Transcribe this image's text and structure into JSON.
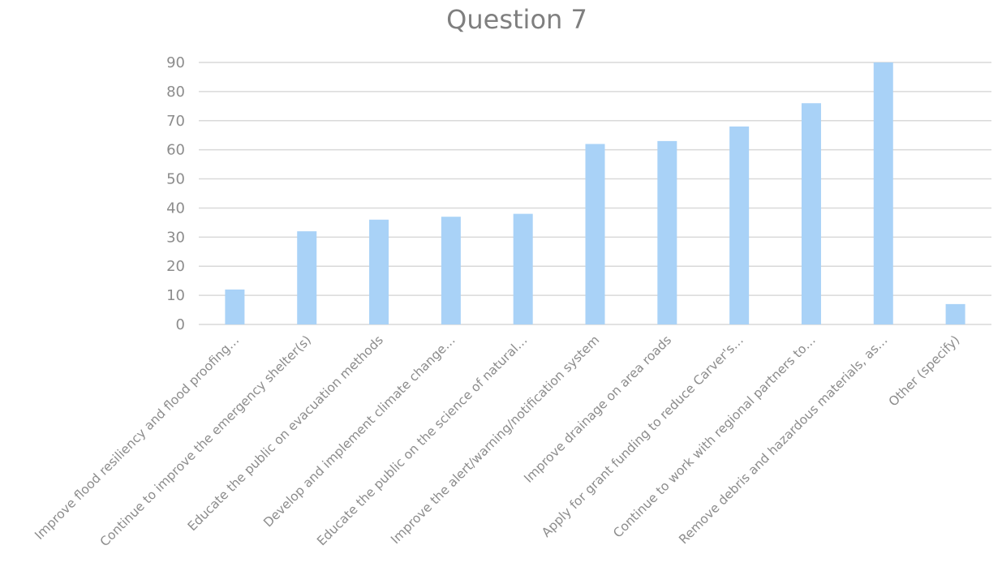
{
  "chart_data": {
    "type": "bar",
    "title": "Question 7",
    "xlabel": "",
    "ylabel": "",
    "ylim": [
      0,
      90
    ],
    "yticks": [
      0,
      10,
      20,
      30,
      40,
      50,
      60,
      70,
      80,
      90
    ],
    "grid": true,
    "legend": "none",
    "bar_color": "#a9d2f7",
    "categories": [
      "Improve flood resiliency and flood proofing…",
      "Continue to improve the emergency shelter(s)",
      "Educate the public on evacuation methods",
      "Develop and implement climate change…",
      "Educate the public on the science of natural…",
      "Improve the alert/warning/notification system",
      "Improve drainage on area roads",
      "Apply for grant funding to reduce Carver's…",
      "Continue to work with regional partners to…",
      "Remove debris and hazardous materials, as…",
      "Other (specify)"
    ],
    "values": [
      12,
      32,
      36,
      37,
      38,
      62,
      63,
      68,
      76,
      90,
      7
    ]
  }
}
